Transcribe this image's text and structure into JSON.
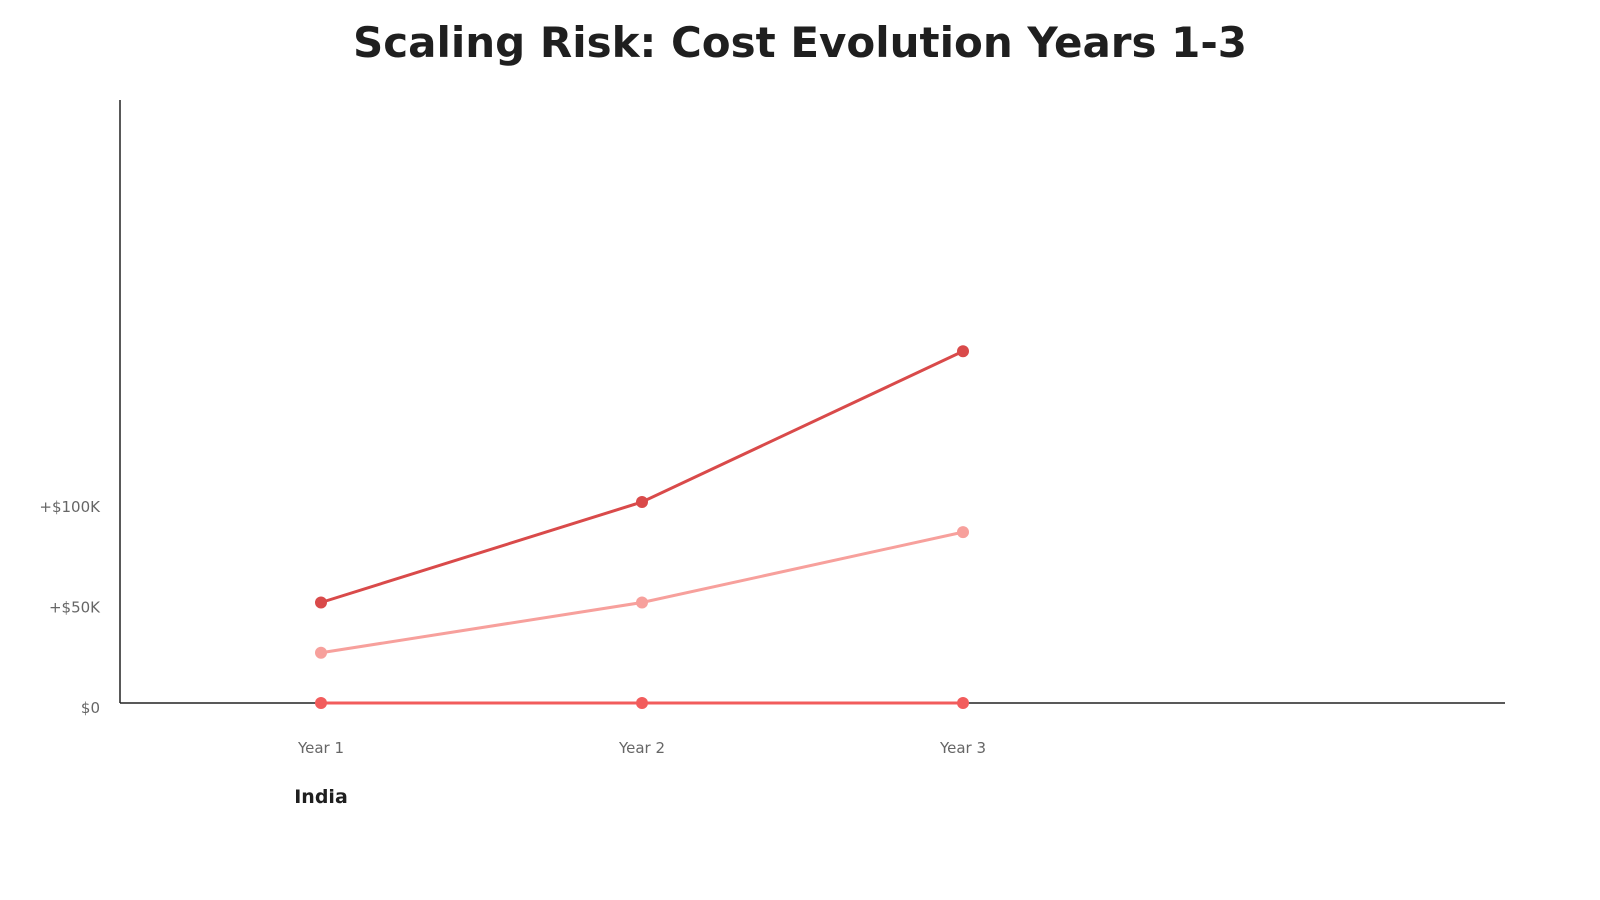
{
  "chart_data": {
    "type": "line",
    "title": "Scaling Risk: Cost Evolution Years 1-3",
    "xlabel": "",
    "ylabel": "",
    "categories": [
      "Year 1",
      "Year 2",
      "Year 3"
    ],
    "group_label": "India",
    "y_ticks": [
      {
        "value": 0,
        "label": "$0"
      },
      {
        "value": 50000,
        "label": "+$50K"
      },
      {
        "value": 100000,
        "label": "+$100K"
      }
    ],
    "ylim": [
      0,
      300000
    ],
    "grid": false,
    "legend": "none",
    "series": [
      {
        "color": "#d94a4a",
        "values": [
          50000,
          100000,
          175000
        ]
      },
      {
        "color": "#f7a09c",
        "values": [
          25000,
          50000,
          85000
        ]
      },
      {
        "color": "#f25c5c",
        "values": [
          0,
          0,
          0
        ]
      }
    ]
  }
}
